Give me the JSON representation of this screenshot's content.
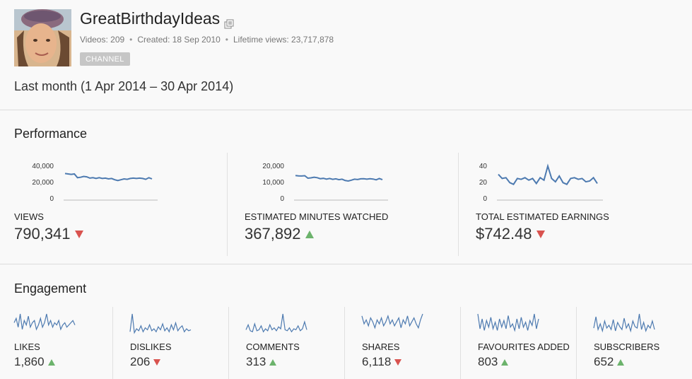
{
  "channel": {
    "name": "GreatBirthdayIdeas",
    "videos": "Videos: 209",
    "created": "Created: 18 Sep 2010",
    "lifetime_views": "Lifetime views: 23,717,878",
    "badge": "CHANNEL",
    "external_link_icon": "external-link-icon"
  },
  "date_range": "Last month (1 Apr 2014 – 30 Apr 2014)",
  "performance": {
    "title": "Performance",
    "metrics": [
      {
        "label": "VIEWS",
        "value": "790,341",
        "trend": "down",
        "yticks": [
          "40,000",
          "20,000",
          "0"
        ],
        "ymax": 40000,
        "spark": [
          32000,
          31500,
          31000,
          31500,
          27000,
          27500,
          28500,
          28000,
          26500,
          27000,
          26000,
          27000,
          26000,
          26500,
          25500,
          26000,
          24500,
          23500,
          24500,
          25500,
          25000,
          26000,
          26500,
          26000,
          26500,
          26000,
          25000,
          27000,
          25500
        ]
      },
      {
        "label": "ESTIMATED MINUTES WATCHED",
        "value": "367,892",
        "trend": "up",
        "yticks": [
          "20,000",
          "10,000",
          "0"
        ],
        "ymax": 20000,
        "spark": [
          14800,
          14600,
          14500,
          14700,
          13200,
          13400,
          13800,
          13500,
          12900,
          13100,
          12600,
          13000,
          12500,
          12800,
          12300,
          12600,
          11800,
          11500,
          12000,
          12600,
          12400,
          12800,
          12900,
          12600,
          12900,
          12700,
          12200,
          13000,
          12300
        ]
      },
      {
        "label": "TOTAL ESTIMATED EARNINGS",
        "value": "$742.48",
        "trend": "down",
        "yticks": [
          "40",
          "20",
          "0"
        ],
        "ymax": 40,
        "spark": [
          31,
          26,
          27,
          21,
          19,
          26,
          25,
          27,
          24,
          26,
          20,
          27,
          24,
          41,
          26,
          22,
          29,
          21,
          19,
          26,
          27,
          25,
          26,
          22,
          23,
          27,
          20
        ]
      }
    ]
  },
  "engagement": {
    "title": "Engagement",
    "metrics": [
      {
        "label": "LIKES",
        "value": "1,860",
        "trend": "up",
        "spark": [
          5,
          7,
          3,
          9,
          2,
          6,
          4,
          8,
          3,
          5,
          6,
          2,
          4,
          7,
          3,
          5,
          9,
          4,
          6,
          3,
          5,
          4,
          6,
          2,
          4,
          5,
          3,
          4,
          5,
          6,
          4
        ]
      },
      {
        "label": "DISLIKES",
        "value": "206",
        "trend": "down",
        "spark": [
          2,
          20,
          1,
          5,
          3,
          8,
          2,
          6,
          4,
          9,
          3,
          5,
          2,
          7,
          4,
          10,
          3,
          6,
          2,
          9,
          4,
          11,
          3,
          6,
          8,
          2,
          5,
          3,
          4
        ]
      },
      {
        "label": "COMMENTS",
        "value": "313",
        "trend": "up",
        "spark": [
          4,
          9,
          3,
          2,
          10,
          3,
          4,
          8,
          2,
          5,
          3,
          9,
          4,
          6,
          3,
          7,
          5,
          20,
          4,
          3,
          6,
          2,
          5,
          4,
          8,
          3,
          5,
          12,
          4
        ]
      },
      {
        "label": "SHARES",
        "value": "6,118",
        "trend": "down",
        "spark": [
          9,
          5,
          7,
          4,
          8,
          6,
          3,
          7,
          5,
          8,
          4,
          6,
          9,
          5,
          7,
          4,
          6,
          8,
          3,
          7,
          5,
          9,
          4,
          6,
          8,
          5,
          3,
          7,
          10
        ]
      },
      {
        "label": "FAVOURITES ADDED",
        "value": "803",
        "trend": "up",
        "spark": [
          12,
          3,
          9,
          2,
          8,
          4,
          10,
          3,
          7,
          2,
          9,
          4,
          8,
          3,
          11,
          4,
          6,
          2,
          9,
          3,
          10,
          4,
          7,
          2,
          8,
          5,
          12,
          3,
          9
        ]
      },
      {
        "label": "SUBSCRIBERS",
        "value": "652",
        "trend": "up",
        "spark": [
          4,
          12,
          3,
          7,
          2,
          9,
          4,
          6,
          3,
          10,
          2,
          8,
          5,
          3,
          11,
          4,
          7,
          2,
          9,
          5,
          4,
          14,
          3,
          8,
          2,
          6,
          4,
          9,
          3
        ]
      }
    ]
  },
  "colors": {
    "line": "#4d7ab0",
    "up": "#6cb36c",
    "down": "#d9534f",
    "divider": "#dcdcdc",
    "axis": "#bbbbbb"
  }
}
